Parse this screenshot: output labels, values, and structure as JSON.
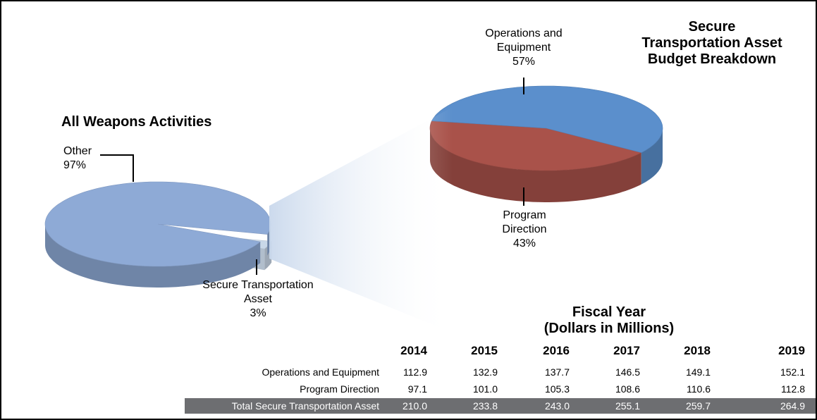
{
  "chart_data": [
    {
      "type": "pie",
      "title": "All Weapons Activities",
      "categories": [
        "Other",
        "Secure Transportation Asset"
      ],
      "values": [
        97,
        3
      ],
      "value_labels": [
        "97%",
        "3%"
      ],
      "colors": [
        "#8eaad6",
        "#c9d8e8"
      ]
    },
    {
      "type": "pie",
      "title": "Secure Transportation Asset Budget Breakdown",
      "categories": [
        "Operations and Equipment",
        "Program Direction"
      ],
      "values": [
        57,
        43
      ],
      "value_labels": [
        "57%",
        "43%"
      ],
      "colors": [
        "#5b8fcc",
        "#a9524a"
      ]
    }
  ],
  "table": {
    "title": "Fiscal Year",
    "subtitle": "(Dollars in Millions)",
    "columns": [
      "2014",
      "2015",
      "2016",
      "2017",
      "2018",
      "2019"
    ],
    "rows": [
      {
        "label": "Operations and Equipment",
        "values": [
          "112.9",
          "132.9",
          "137.7",
          "146.5",
          "149.1",
          "152.1"
        ]
      },
      {
        "label": "Program Direction",
        "values": [
          "97.1",
          "101.0",
          "105.3",
          "108.6",
          "110.6",
          "112.8"
        ]
      },
      {
        "label": "Total Secure Transportation Asset",
        "values": [
          "210.0",
          "233.8",
          "243.0",
          "255.1",
          "259.7",
          "264.9"
        ]
      }
    ]
  }
}
